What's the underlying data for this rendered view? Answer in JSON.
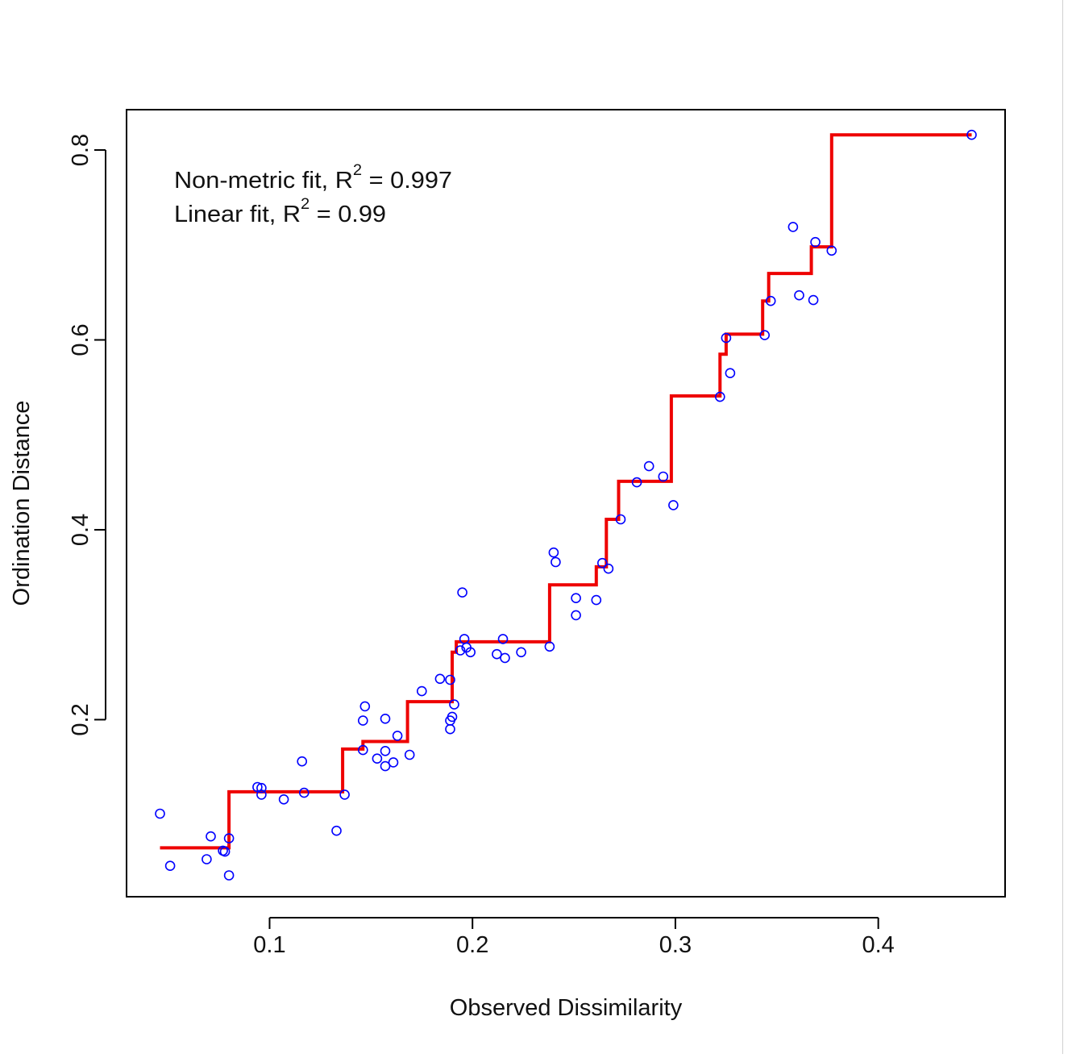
{
  "chart_data": {
    "type": "scatter",
    "xlabel": "Observed Dissimilarity",
    "ylabel": "Ordination Distance",
    "xlim": [
      0.0295,
      0.4625
    ],
    "ylim": [
      0.0135,
      0.8425
    ],
    "xticks": [
      0.1,
      0.2,
      0.3,
      0.4
    ],
    "xtick_labels": [
      "0.1",
      "0.2",
      "0.3",
      "0.4"
    ],
    "yticks": [
      0.2,
      0.4,
      0.6,
      0.8
    ],
    "ytick_labels": [
      "0.2",
      "0.4",
      "0.6",
      "0.8"
    ],
    "grid": false,
    "annotations": [
      {
        "prefix": "Non-metric fit, R",
        "sup": "2",
        "suffix": " = 0.997"
      },
      {
        "prefix": "Linear fit, R",
        "sup": "2",
        "suffix": " = 0.99"
      }
    ],
    "points_color": "#0000ff",
    "fit_color": "#ee0000",
    "points": [
      [
        0.046,
        0.101
      ],
      [
        0.051,
        0.046
      ],
      [
        0.069,
        0.053
      ],
      [
        0.071,
        0.077
      ],
      [
        0.077,
        0.062
      ],
      [
        0.078,
        0.061
      ],
      [
        0.08,
        0.075
      ],
      [
        0.08,
        0.036
      ],
      [
        0.094,
        0.129
      ],
      [
        0.096,
        0.128
      ],
      [
        0.096,
        0.121
      ],
      [
        0.107,
        0.116
      ],
      [
        0.116,
        0.156
      ],
      [
        0.117,
        0.123
      ],
      [
        0.133,
        0.083
      ],
      [
        0.137,
        0.121
      ],
      [
        0.146,
        0.168
      ],
      [
        0.146,
        0.199
      ],
      [
        0.147,
        0.214
      ],
      [
        0.153,
        0.159
      ],
      [
        0.157,
        0.151
      ],
      [
        0.157,
        0.167
      ],
      [
        0.157,
        0.201
      ],
      [
        0.161,
        0.155
      ],
      [
        0.163,
        0.183
      ],
      [
        0.169,
        0.163
      ],
      [
        0.175,
        0.23
      ],
      [
        0.184,
        0.243
      ],
      [
        0.189,
        0.242
      ],
      [
        0.189,
        0.19
      ],
      [
        0.189,
        0.199
      ],
      [
        0.19,
        0.203
      ],
      [
        0.191,
        0.216
      ],
      [
        0.194,
        0.273
      ],
      [
        0.195,
        0.334
      ],
      [
        0.196,
        0.285
      ],
      [
        0.197,
        0.276
      ],
      [
        0.199,
        0.271
      ],
      [
        0.212,
        0.269
      ],
      [
        0.215,
        0.285
      ],
      [
        0.216,
        0.265
      ],
      [
        0.224,
        0.271
      ],
      [
        0.238,
        0.277
      ],
      [
        0.24,
        0.376
      ],
      [
        0.241,
        0.366
      ],
      [
        0.251,
        0.328
      ],
      [
        0.251,
        0.31
      ],
      [
        0.261,
        0.326
      ],
      [
        0.264,
        0.365
      ],
      [
        0.267,
        0.359
      ],
      [
        0.273,
        0.411
      ],
      [
        0.281,
        0.45
      ],
      [
        0.287,
        0.467
      ],
      [
        0.294,
        0.456
      ],
      [
        0.299,
        0.426
      ],
      [
        0.322,
        0.54
      ],
      [
        0.325,
        0.602
      ],
      [
        0.327,
        0.565
      ],
      [
        0.344,
        0.605
      ],
      [
        0.347,
        0.641
      ],
      [
        0.358,
        0.719
      ],
      [
        0.361,
        0.647
      ],
      [
        0.368,
        0.642
      ],
      [
        0.369,
        0.703
      ],
      [
        0.377,
        0.694
      ],
      [
        0.446,
        0.816
      ]
    ],
    "stepfit": [
      [
        0.046,
        0.065
      ],
      [
        0.08,
        0.065
      ],
      [
        0.08,
        0.124
      ],
      [
        0.136,
        0.124
      ],
      [
        0.136,
        0.169
      ],
      [
        0.146,
        0.169
      ],
      [
        0.146,
        0.177
      ],
      [
        0.168,
        0.177
      ],
      [
        0.168,
        0.219
      ],
      [
        0.19,
        0.219
      ],
      [
        0.19,
        0.271
      ],
      [
        0.192,
        0.271
      ],
      [
        0.192,
        0.282
      ],
      [
        0.238,
        0.282
      ],
      [
        0.238,
        0.342
      ],
      [
        0.261,
        0.342
      ],
      [
        0.261,
        0.361
      ],
      [
        0.266,
        0.361
      ],
      [
        0.266,
        0.411
      ],
      [
        0.272,
        0.411
      ],
      [
        0.272,
        0.451
      ],
      [
        0.298,
        0.451
      ],
      [
        0.298,
        0.541
      ],
      [
        0.322,
        0.541
      ],
      [
        0.322,
        0.585
      ],
      [
        0.325,
        0.585
      ],
      [
        0.325,
        0.606
      ],
      [
        0.343,
        0.606
      ],
      [
        0.343,
        0.641
      ],
      [
        0.346,
        0.641
      ],
      [
        0.346,
        0.67
      ],
      [
        0.367,
        0.67
      ],
      [
        0.367,
        0.698
      ],
      [
        0.377,
        0.698
      ],
      [
        0.377,
        0.816
      ],
      [
        0.446,
        0.816
      ]
    ]
  }
}
